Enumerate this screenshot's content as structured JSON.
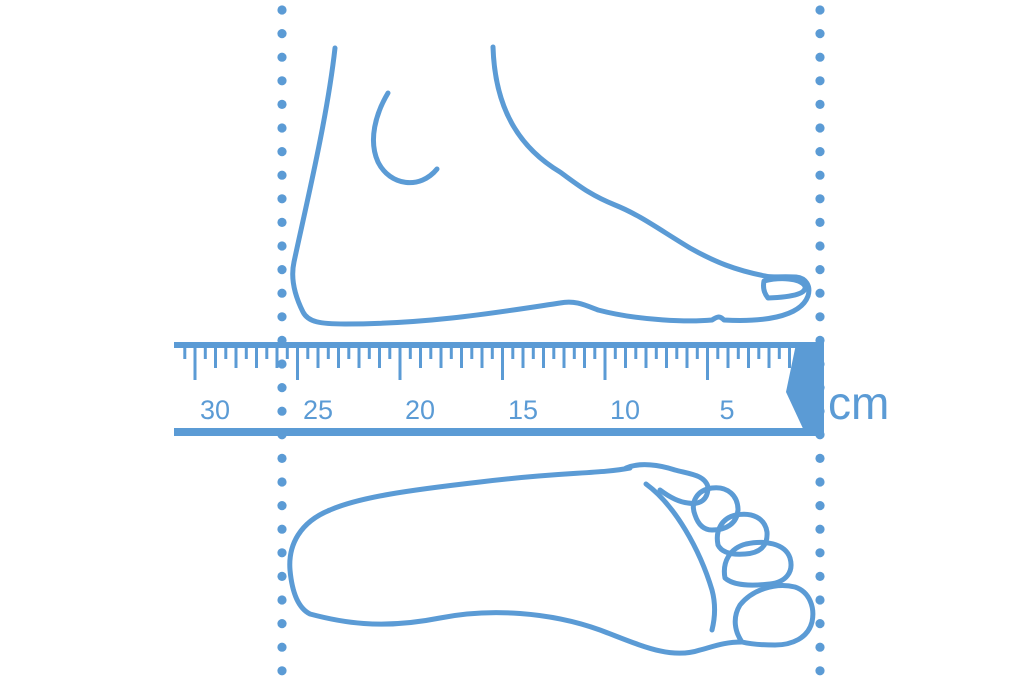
{
  "ruler": {
    "unit": "cm",
    "labels": [
      "30",
      "25",
      "20",
      "15",
      "10",
      "5"
    ]
  },
  "colors": {
    "line": "#5b9bd5",
    "background": "#ffffff"
  },
  "icons": [
    "foot-side-view-icon",
    "foot-sole-view-icon"
  ]
}
